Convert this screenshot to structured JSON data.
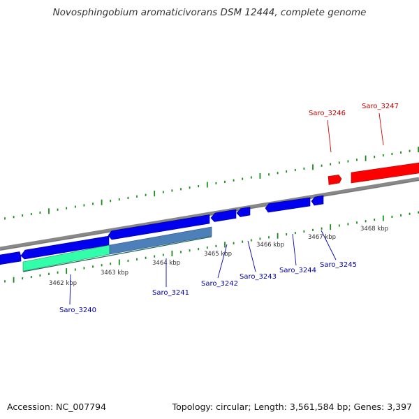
{
  "title": "Novosphingobium aromaticivorans DSM 12444, complete genome",
  "footer": {
    "accession": "Accession: NC_007794",
    "summary": "Topology: circular; Length: 3,561,584 bp; Genes: 3,397"
  },
  "colors": {
    "forward_gene": "#ff0000",
    "reverse_gene": "#0000ff",
    "highlight_gene": "#33ffaa",
    "highlight_overlap": "#4d7fb8",
    "backbone": "#8a8a8a",
    "ticks": "#1a8a1a",
    "label_blue": "#0000aa",
    "label_red": "#cc0000"
  },
  "scale_labels": [
    "3462 kbp",
    "3463 kbp",
    "3464 kbp",
    "3465 kbp",
    "3466 kbp",
    "3467 kbp",
    "3468 kbp"
  ],
  "genes": [
    {
      "label": "Saro_3240",
      "strand": "reverse"
    },
    {
      "label": "Saro_3241",
      "strand": "reverse"
    },
    {
      "label": "Saro_3242",
      "strand": "reverse"
    },
    {
      "label": "Saro_3243",
      "strand": "reverse"
    },
    {
      "label": "Saro_3244",
      "strand": "reverse"
    },
    {
      "label": "Saro_3245",
      "strand": "reverse"
    },
    {
      "label": "Saro_3246",
      "strand": "forward"
    },
    {
      "label": "Saro_3247",
      "strand": "forward"
    }
  ]
}
